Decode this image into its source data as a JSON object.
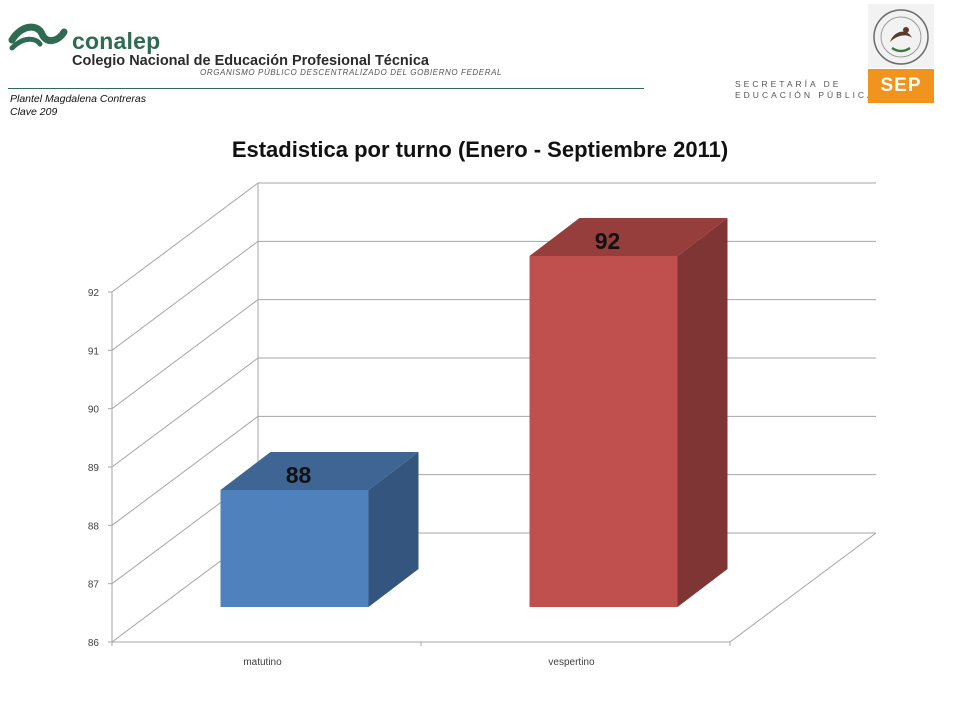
{
  "header": {
    "brand": "conalep",
    "institution": "Colegio Nacional de Educación Profesional Técnica",
    "subtitle": "ORGANISMO PÚBLICO DESCENTRALIZADO DEL GOBIERNO FEDERAL",
    "plantel_line1": "Plantel  Magdalena Contreras",
    "plantel_line2": "Clave 209",
    "sep_line1": "SECRETARÍA DE",
    "sep_line2": "EDUCACIÓN PÚBLICA",
    "sep_abbr": "SEP"
  },
  "colors": {
    "brand_green": "#2e6b52",
    "sep_orange": "#f0941e"
  },
  "chart_data": {
    "type": "bar",
    "title": "Estadistica por turno (Enero - Septiembre 2011)",
    "categories": [
      "matutino",
      "vespertino"
    ],
    "values": [
      88,
      92
    ],
    "data_labels": [
      "88",
      "92"
    ],
    "colors": [
      "#4f81bd",
      "#c0504d"
    ],
    "ylim": [
      86,
      92
    ],
    "yticks": [
      86,
      87,
      88,
      89,
      90,
      91,
      92
    ],
    "grid": true,
    "legend": "none",
    "style": "3d"
  }
}
